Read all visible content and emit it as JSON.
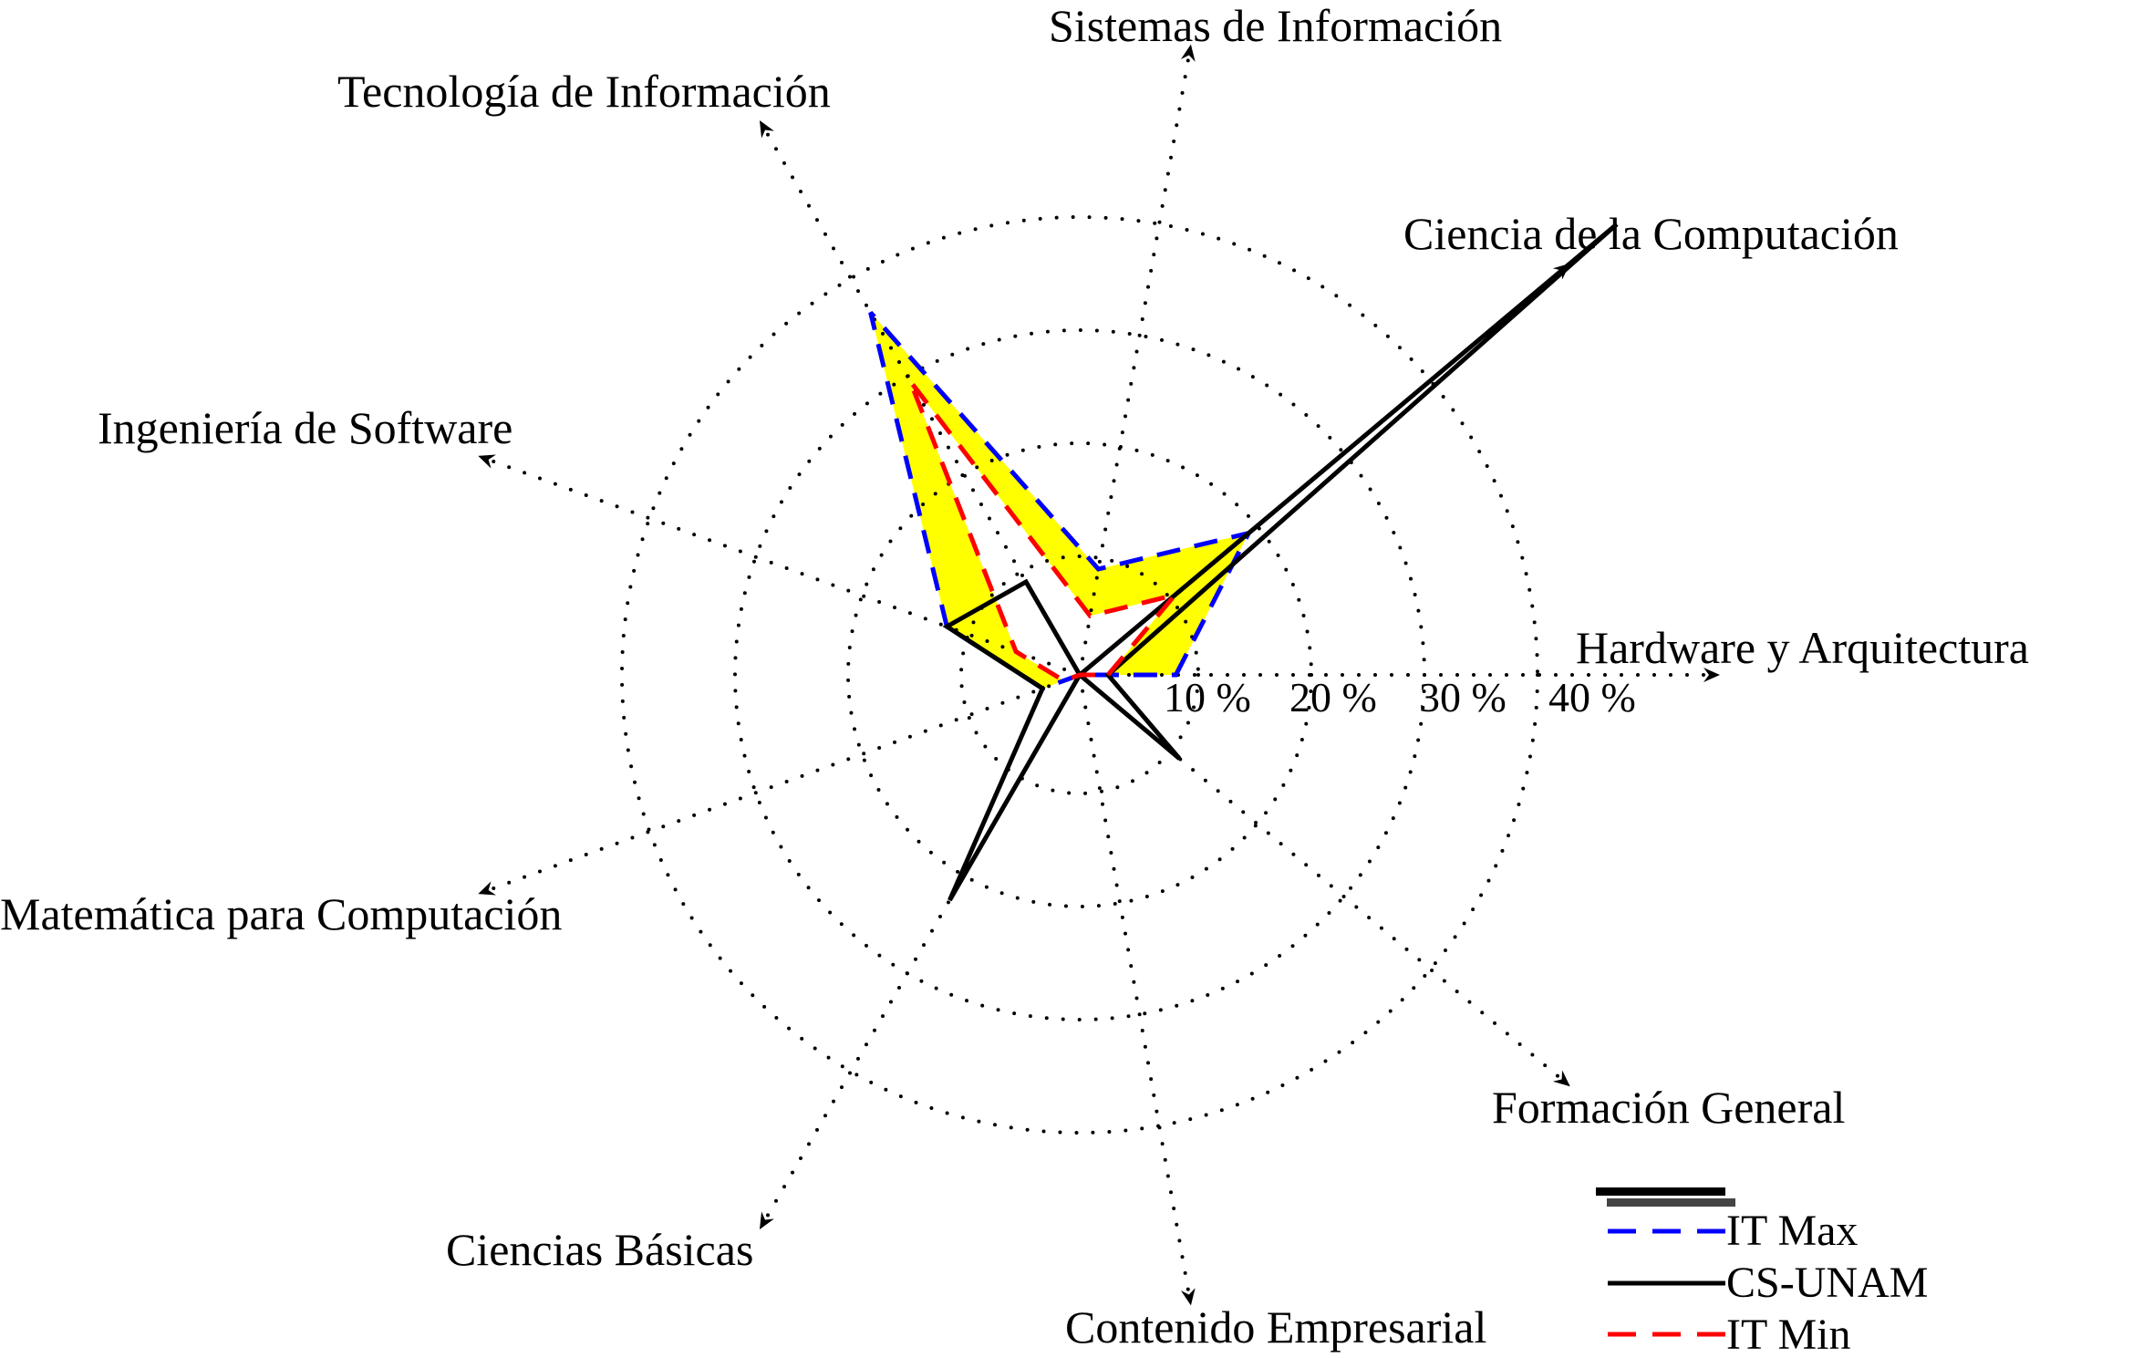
{
  "chart_data": {
    "type": "radar",
    "axes": [
      "Hardware y Arquitectura",
      "Ciencia de la Computación",
      "Sistemas de Información",
      "Tecnología de Información",
      "Ingeniería de Software",
      "Matemática para Computación",
      "Ciencias Básicas",
      "Contenido Empresarial",
      "Formación General"
    ],
    "radial_ticks": [
      "10 %",
      "20 %",
      "30 %",
      "40 %"
    ],
    "radial_values": [
      10,
      20,
      30,
      40
    ],
    "grid": true,
    "legend_position": "bottom-right",
    "series": [
      {
        "name": "IT Max",
        "color": "#0000ff",
        "style": "dashed",
        "values": [
          8.5,
          19.5,
          9.5,
          37,
          12.5,
          3.5,
          0,
          0,
          0
        ]
      },
      {
        "name": "CS-UNAM",
        "color": "#000000",
        "style": "solid",
        "values": [
          2.5,
          62,
          0,
          9.5,
          12.5,
          3.5,
          23,
          0,
          11.5
        ]
      },
      {
        "name": "IT Min",
        "color": "#ff0000",
        "style": "dashed",
        "values": [
          2.5,
          11,
          5.3,
          30,
          6,
          1.5,
          0,
          0,
          0
        ]
      }
    ],
    "fill_between": {
      "from": "IT Min",
      "to": "IT Max",
      "color": "#ffff00"
    }
  }
}
